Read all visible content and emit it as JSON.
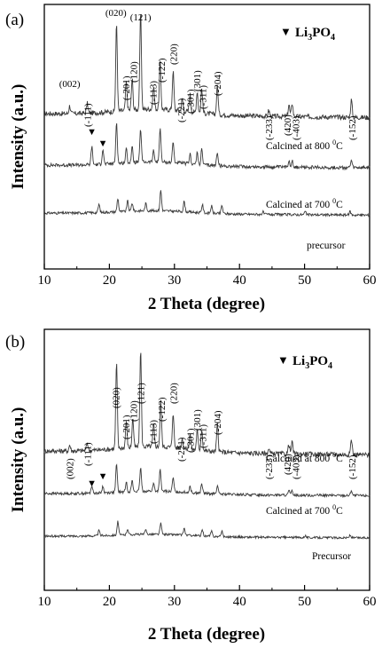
{
  "figure": {
    "background": "#ffffff",
    "trace_color": "#3a3a3a"
  },
  "chart_data": [
    {
      "type": "line",
      "panel_label": "(a)",
      "xlabel": "2 Theta (degree)",
      "ylabel": "Intensity (a.u.)",
      "xlim": [
        10,
        60
      ],
      "x_ticks": [
        10,
        20,
        30,
        40,
        50,
        60
      ],
      "y_ticks": "none",
      "legend": {
        "marker": "▼",
        "text": "Li3PO4",
        "text_main": "Li",
        "text_sub": "3",
        "text_tail": "PO",
        "text_sub2": "4",
        "position": "top-right"
      },
      "series": [
        {
          "name": "Calcined at 800 °C",
          "label_main": "Calcined at 800 ",
          "label_sup": "0",
          "label_tail": "C",
          "baseline": 0.74,
          "peaks": [
            [
              13.9,
              0.08
            ],
            [
              16.6,
              0.1
            ],
            [
              21.1,
              0.9
            ],
            [
              22.6,
              0.3
            ],
            [
              23.5,
              0.32
            ],
            [
              24.8,
              1.0
            ],
            [
              26.8,
              0.24
            ],
            [
              27.8,
              0.48
            ],
            [
              29.8,
              0.4
            ],
            [
              31.2,
              0.12
            ],
            [
              32.4,
              0.18
            ],
            [
              33.5,
              0.22
            ],
            [
              34.2,
              0.25
            ],
            [
              36.6,
              0.3
            ],
            [
              44.5,
              0.06
            ],
            [
              47.6,
              0.12
            ],
            [
              48.1,
              0.14
            ],
            [
              57.2,
              0.18
            ]
          ]
        },
        {
          "name": "Calcined at 700 °C",
          "label_main": "Calcined at 700 ",
          "label_sup": "0",
          "label_tail": "C",
          "baseline": 0.42,
          "peaks": [
            [
              17.3,
              0.26
            ],
            [
              19.0,
              0.22
            ],
            [
              21.1,
              0.6
            ],
            [
              22.6,
              0.2
            ],
            [
              23.5,
              0.22
            ],
            [
              24.8,
              0.48
            ],
            [
              26.8,
              0.16
            ],
            [
              27.8,
              0.5
            ],
            [
              29.8,
              0.3
            ],
            [
              32.4,
              0.14
            ],
            [
              33.5,
              0.16
            ],
            [
              34.2,
              0.22
            ],
            [
              36.6,
              0.2
            ],
            [
              47.6,
              0.1
            ],
            [
              48.1,
              0.1
            ],
            [
              57.2,
              0.1
            ]
          ]
        },
        {
          "name": "precursor",
          "label_main": "precursor",
          "label_sup": "",
          "label_tail": "",
          "baseline": 0.12,
          "peaks": [
            [
              18.4,
              0.16
            ],
            [
              21.3,
              0.26
            ],
            [
              22.8,
              0.2
            ],
            [
              23.5,
              0.16
            ],
            [
              25.6,
              0.14
            ],
            [
              27.9,
              0.4
            ],
            [
              31.5,
              0.2
            ],
            [
              34.3,
              0.16
            ],
            [
              35.7,
              0.14
            ],
            [
              37.3,
              0.16
            ],
            [
              43.6,
              0.05
            ],
            [
              50.1,
              0.06
            ],
            [
              57.0,
              0.07
            ]
          ]
        }
      ],
      "markers": [
        {
          "symbol": "▼",
          "x": 17.3
        },
        {
          "symbol": "▼",
          "x": 19.0
        }
      ],
      "peak_labels": [
        {
          "text": "(002)",
          "x": 13.9,
          "rot": 0
        },
        {
          "text": "(-111)",
          "x": 16.6,
          "rot": -90
        },
        {
          "text": "(020)",
          "x": 21.0,
          "rot": 0
        },
        {
          "text": "(-201)",
          "x": 22.5,
          "rot": -90
        },
        {
          "text": "(120)",
          "x": 23.7,
          "rot": -90
        },
        {
          "text": "(121)",
          "x": 24.8,
          "rot": 0
        },
        {
          "text": "(-113)",
          "x": 26.7,
          "rot": -90
        },
        {
          "text": "(-122)",
          "x": 28.0,
          "rot": -90
        },
        {
          "text": "(220)",
          "x": 29.8,
          "rot": -90
        },
        {
          "text": "(-221)",
          "x": 31.0,
          "rot": -90
        },
        {
          "text": "(-301)",
          "x": 32.4,
          "rot": -90
        },
        {
          "text": "(301)",
          "x": 33.4,
          "rot": -90
        },
        {
          "text": "(-311)",
          "x": 34.3,
          "rot": -90
        },
        {
          "text": "(-204)",
          "x": 36.6,
          "rot": -90
        },
        {
          "text": "(-233)",
          "x": 44.5,
          "rot": -90
        },
        {
          "text": "(420)",
          "x": 47.3,
          "rot": -90
        },
        {
          "text": "(-403)",
          "x": 48.6,
          "rot": -90
        },
        {
          "text": "(-152)",
          "x": 57.3,
          "rot": -90
        }
      ]
    },
    {
      "type": "line",
      "panel_label": "(b)",
      "xlabel": "2 Theta (degree)",
      "ylabel": "Intensity (a.u.)",
      "xlim": [
        10,
        60
      ],
      "x_ticks": [
        10,
        20,
        30,
        40,
        50,
        60
      ],
      "y_ticks": "none",
      "legend": {
        "marker": "▼",
        "text": "Li3PO4",
        "text_main": "Li",
        "text_sub": "3",
        "text_tail": "PO",
        "text_sub2": "4",
        "position": "top-right"
      },
      "series": [
        {
          "name": "Calcined at 800 °C",
          "label_main": "Calcined at 800 ",
          "label_sup": "0",
          "label_tail": "C",
          "baseline": 0.6,
          "peaks": [
            [
              13.9,
              0.06
            ],
            [
              16.6,
              0.08
            ],
            [
              21.1,
              0.88
            ],
            [
              22.6,
              0.28
            ],
            [
              23.6,
              0.3
            ],
            [
              24.8,
              1.0
            ],
            [
              26.8,
              0.22
            ],
            [
              27.9,
              0.46
            ],
            [
              29.8,
              0.36
            ],
            [
              31.2,
              0.1
            ],
            [
              32.4,
              0.16
            ],
            [
              33.5,
              0.2
            ],
            [
              34.2,
              0.22
            ],
            [
              36.6,
              0.28
            ],
            [
              44.5,
              0.05
            ],
            [
              47.6,
              0.1
            ],
            [
              48.1,
              0.12
            ],
            [
              57.2,
              0.16
            ]
          ]
        },
        {
          "name": "Calcined at 700 °C",
          "label_main": "Calcined at 700 ",
          "label_sup": "0",
          "label_tail": "C",
          "baseline": 0.36,
          "peaks": [
            [
              17.3,
              0.14
            ],
            [
              19.0,
              0.12
            ],
            [
              21.1,
              0.52
            ],
            [
              22.6,
              0.18
            ],
            [
              23.5,
              0.2
            ],
            [
              24.8,
              0.44
            ],
            [
              26.8,
              0.14
            ],
            [
              27.8,
              0.4
            ],
            [
              29.8,
              0.26
            ],
            [
              32.4,
              0.12
            ],
            [
              34.2,
              0.18
            ],
            [
              36.6,
              0.16
            ],
            [
              47.6,
              0.08
            ],
            [
              48.1,
              0.08
            ],
            [
              57.2,
              0.1
            ]
          ]
        },
        {
          "name": "Precursor",
          "label_main": "Precursor",
          "label_sup": "",
          "label_tail": "",
          "baseline": 0.12,
          "peaks": [
            [
              18.4,
              0.12
            ],
            [
              21.3,
              0.32
            ],
            [
              22.8,
              0.14
            ],
            [
              25.6,
              0.1
            ],
            [
              27.9,
              0.26
            ],
            [
              31.5,
              0.16
            ],
            [
              34.3,
              0.14
            ],
            [
              35.7,
              0.12
            ],
            [
              37.3,
              0.14
            ],
            [
              50.1,
              0.05
            ],
            [
              57.0,
              0.06
            ]
          ]
        }
      ],
      "markers": [
        {
          "symbol": "▼",
          "x": 17.3
        },
        {
          "symbol": "▼",
          "x": 19.0
        }
      ],
      "peak_labels": [
        {
          "text": "(002)",
          "x": 13.9,
          "rot": -90
        },
        {
          "text": "(-111)",
          "x": 16.6,
          "rot": -90
        },
        {
          "text": "(020)",
          "x": 21.0,
          "rot": -90
        },
        {
          "text": "(-201)",
          "x": 22.5,
          "rot": -90
        },
        {
          "text": "(120)",
          "x": 23.7,
          "rot": -90
        },
        {
          "text": "(121)",
          "x": 24.8,
          "rot": -90
        },
        {
          "text": "(-113)",
          "x": 26.7,
          "rot": -90
        },
        {
          "text": "(-122)",
          "x": 28.0,
          "rot": -90
        },
        {
          "text": "(220)",
          "x": 29.8,
          "rot": -90
        },
        {
          "text": "(-221)",
          "x": 31.0,
          "rot": -90
        },
        {
          "text": "(-301)",
          "x": 32.4,
          "rot": -90
        },
        {
          "text": "(301)",
          "x": 33.4,
          "rot": -90
        },
        {
          "text": "(-311)",
          "x": 34.3,
          "rot": -90
        },
        {
          "text": "(-204)",
          "x": 36.6,
          "rot": -90
        },
        {
          "text": "(-233)",
          "x": 44.5,
          "rot": -90
        },
        {
          "text": "(420)",
          "x": 47.3,
          "rot": -90
        },
        {
          "text": "(-403)",
          "x": 48.6,
          "rot": -90
        },
        {
          "text": "(-152)",
          "x": 57.3,
          "rot": -90
        }
      ]
    }
  ]
}
